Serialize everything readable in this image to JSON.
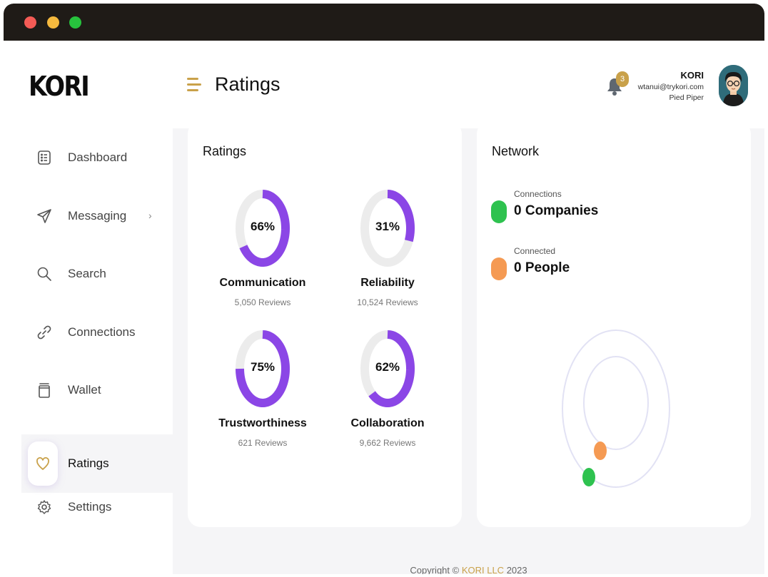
{
  "window": {
    "title_bar_colors": {
      "close": "#f45b55",
      "minimize": "#f5b93e",
      "maximize": "#27c23d"
    }
  },
  "header": {
    "logo": "KORI",
    "page_title": "Ratings",
    "notifications_count": "3",
    "user": {
      "name": "KORI",
      "email": "wtanui@trykori.com",
      "company": "Pied Piper"
    }
  },
  "sidebar": {
    "items": [
      {
        "label": "Dashboard",
        "icon": "dashboard-icon"
      },
      {
        "label": "Messaging",
        "icon": "send-icon",
        "has_submenu": true
      },
      {
        "label": "Search",
        "icon": "search-icon"
      },
      {
        "label": "Connections",
        "icon": "link-icon"
      },
      {
        "label": "Wallet",
        "icon": "wallet-icon"
      },
      {
        "label": "Ratings",
        "icon": "heart-icon",
        "active": true
      },
      {
        "label": "Settings",
        "icon": "gear-icon"
      }
    ]
  },
  "ratings_card": {
    "title": "Ratings",
    "items": [
      {
        "label": "Communication",
        "percent": 66,
        "percent_text": "66%",
        "reviews": "5,050 Reviews"
      },
      {
        "label": "Reliability",
        "percent": 31,
        "percent_text": "31%",
        "reviews": "10,524 Reviews"
      },
      {
        "label": "Trustworthiness",
        "percent": 75,
        "percent_text": "75%",
        "reviews": "621 Reviews"
      },
      {
        "label": "Collaboration",
        "percent": 62,
        "percent_text": "62%",
        "reviews": "9,662 Reviews"
      }
    ]
  },
  "network_card": {
    "title": "Network",
    "connections": {
      "caption": "Connections",
      "value": "0 Companies",
      "color": "#2ec24f"
    },
    "connected": {
      "caption": "Connected",
      "value": "0 People",
      "color": "#f59a53"
    }
  },
  "footer": {
    "prefix": "Copyright ©",
    "brand": "KORI LLC",
    "year": "2023"
  },
  "colors": {
    "accent": "#c9a14a",
    "donut": "#8b46e6",
    "donut_track": "#ececec",
    "orbit": "#e2e2f4"
  }
}
